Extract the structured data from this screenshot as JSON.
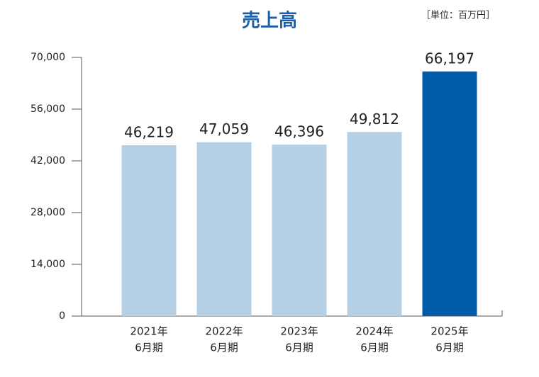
{
  "chart_data": {
    "type": "bar",
    "title": "売上高",
    "unit_label": "［単位：百万円］",
    "categories": [
      [
        "2021年",
        "6月期"
      ],
      [
        "2022年",
        "6月期"
      ],
      [
        "2023年",
        "6月期"
      ],
      [
        "2024年",
        "6月期"
      ],
      [
        "2025年",
        "6月期"
      ]
    ],
    "values": [
      46219,
      47059,
      46396,
      49812,
      66197
    ],
    "value_labels": [
      "46,219",
      "47,059",
      "46,396",
      "49,812",
      "66,197"
    ],
    "colors": [
      "#b5d0e5",
      "#b5d0e5",
      "#b5d0e5",
      "#b5d0e5",
      "#005ca9"
    ],
    "ylim": [
      0,
      70000
    ],
    "yticks": [
      0,
      {
        "value": 14000,
        "label": "14,000"
      },
      {
        "value": 28000,
        "label": "28,000"
      },
      {
        "value": 42000,
        "label": "42,000"
      },
      {
        "value": 56000,
        "label": "56,000"
      },
      {
        "value": 70000,
        "label": "70,000"
      }
    ],
    "grid": false
  }
}
